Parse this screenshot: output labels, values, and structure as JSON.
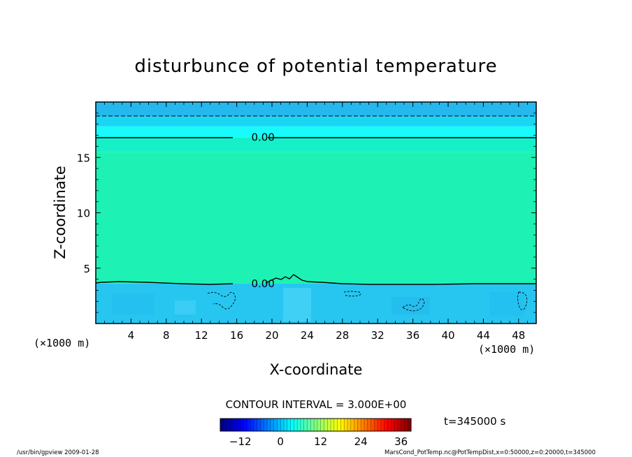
{
  "chart_data": {
    "type": "heatmap",
    "title": "disturbunce of potential temperature",
    "xlabel": "X-coordinate",
    "ylabel": "Z-coordinate",
    "x_scale_note_left": "(×1000 m)",
    "x_scale_note_right": "(×1000 m)",
    "xlim": [
      0,
      50
    ],
    "ylim": [
      0,
      20
    ],
    "x_ticks": [
      4,
      8,
      12,
      16,
      20,
      24,
      28,
      32,
      36,
      40,
      44,
      48
    ],
    "y_ticks": [
      5,
      10,
      15
    ],
    "contour_interval_text": "CONTOUR INTERVAL = 3.000E+00",
    "time_label": "t=345000 s",
    "contour_labels": [
      {
        "text": "0.00",
        "x": 17.5,
        "z": 16.8
      },
      {
        "text": "0.00",
        "x": 17.5,
        "z": 3.6
      }
    ],
    "colorbar": {
      "min": -18,
      "max": 39,
      "ticks": [
        -12,
        0,
        12,
        24,
        36
      ],
      "colormap": "jet"
    },
    "layers": [
      {
        "z_range": [
          0,
          3.6
        ],
        "value": -4.5,
        "color": "#26c6f0"
      },
      {
        "z_range": [
          3.6,
          15.5
        ],
        "value": 1.5,
        "color": "#1df2b4"
      },
      {
        "z_range": [
          15.5,
          16.8
        ],
        "value": 0.5,
        "color": "#15f0c8"
      },
      {
        "z_range": [
          16.8,
          17.8
        ],
        "value": -1.0,
        "color": "#18fbfa"
      },
      {
        "z_range": [
          17.8,
          18.7
        ],
        "value": -4.0,
        "color": "#1ad6f5"
      },
      {
        "z_range": [
          18.7,
          20
        ],
        "value": -6.0,
        "color": "#25b8ef"
      }
    ],
    "footer_left": "/usr/bin/gpview   2009-01-28",
    "footer_right": "MarsCond_PotTemp.nc@PotTempDist,x=0:50000,z=0:20000,t=345000"
  }
}
